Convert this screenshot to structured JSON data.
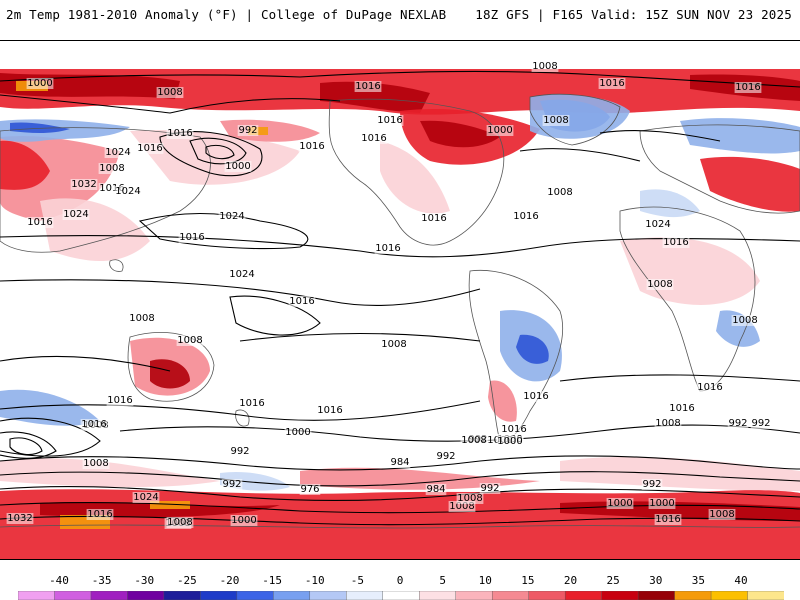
{
  "header": {
    "left_title": "2m Temp 1981-2010 Anomaly (°F) | College of DuPage NEXLAB",
    "right_title": "18Z GFS | F165 Valid: 15Z SUN NOV 23 2025"
  },
  "map": {
    "projection": "cylindrical equidistant (global)",
    "field": "2m temperature anomaly shaded, MSLP contours (hPa)",
    "colors": {
      "warm_light": "#fbd2d6",
      "warm_mid": "#f58a92",
      "warm_strong": "#e8202b",
      "warm_deep": "#b1000b",
      "hot_orange": "#f59b0a",
      "cold_light": "#c9d9f5",
      "cold_mid": "#8fb0ea",
      "cold_strong": "#2f55d6",
      "land_outline": "#555555",
      "contour": "#000000"
    },
    "contour_labels": [
      {
        "text": "1008"
      },
      {
        "text": "1000"
      },
      {
        "text": "1016"
      },
      {
        "text": "1008"
      },
      {
        "text": "1016"
      },
      {
        "text": "1016"
      },
      {
        "text": "1016"
      },
      {
        "text": "1024"
      },
      {
        "text": "992"
      },
      {
        "text": "1016"
      },
      {
        "text": "1016"
      },
      {
        "text": "1024"
      },
      {
        "text": "1008"
      },
      {
        "text": "1016"
      },
      {
        "text": "1024"
      },
      {
        "text": "1000"
      },
      {
        "text": "1016"
      },
      {
        "text": "1016"
      },
      {
        "text": "1000"
      },
      {
        "text": "1008"
      },
      {
        "text": "1016"
      },
      {
        "text": "1008"
      },
      {
        "text": "1032"
      },
      {
        "text": "1024"
      },
      {
        "text": "1016"
      },
      {
        "text": "1024"
      },
      {
        "text": "1016"
      },
      {
        "text": "1016"
      },
      {
        "text": "1016"
      },
      {
        "text": "1016"
      },
      {
        "text": "1024"
      },
      {
        "text": "1016"
      },
      {
        "text": "1008"
      },
      {
        "text": "1008"
      },
      {
        "text": "1008"
      },
      {
        "text": "1008"
      },
      {
        "text": "1016"
      },
      {
        "text": "1008"
      },
      {
        "text": "1016"
      },
      {
        "text": "1016"
      },
      {
        "text": "1016"
      },
      {
        "text": "1008"
      },
      {
        "text": "1016"
      },
      {
        "text": "1016"
      },
      {
        "text": "1000"
      },
      {
        "text": "992"
      },
      {
        "text": "1008"
      },
      {
        "text": "1000"
      },
      {
        "text": "1016"
      },
      {
        "text": "1016"
      },
      {
        "text": "1008"
      },
      {
        "text": "1000"
      },
      {
        "text": "992"
      },
      {
        "text": "992"
      },
      {
        "text": "984"
      },
      {
        "text": "992"
      },
      {
        "text": "1008"
      },
      {
        "text": "1000"
      },
      {
        "text": "992"
      },
      {
        "text": "1000"
      },
      {
        "text": "1008"
      },
      {
        "text": "1024"
      },
      {
        "text": "992"
      },
      {
        "text": "976"
      },
      {
        "text": "984"
      },
      {
        "text": "1000"
      },
      {
        "text": "992"
      },
      {
        "text": "992"
      },
      {
        "text": "1000"
      },
      {
        "text": "1008"
      },
      {
        "text": "1032"
      },
      {
        "text": "1016"
      },
      {
        "text": "1008"
      },
      {
        "text": "1000"
      },
      {
        "text": "1008"
      },
      {
        "text": "1016"
      },
      {
        "text": "1008"
      }
    ]
  },
  "colorbar": {
    "ticks": [
      "-40",
      "-35",
      "-30",
      "-25",
      "-20",
      "-15",
      "-10",
      "-5",
      "0",
      "5",
      "10",
      "15",
      "20",
      "25",
      "30",
      "35",
      "40"
    ],
    "segments": [
      "#f0a0f0",
      "#d060e0",
      "#a020c0",
      "#7000a0",
      "#1e1e9a",
      "#1e3cc8",
      "#3c64e6",
      "#78a0f0",
      "#b4c8f5",
      "#e6eefc",
      "#ffffff",
      "#fde0e4",
      "#fbb4bc",
      "#f58a92",
      "#ee5a66",
      "#e8202b",
      "#c80010",
      "#960008",
      "#f59b0a",
      "#fcc000",
      "#fde68c"
    ]
  }
}
